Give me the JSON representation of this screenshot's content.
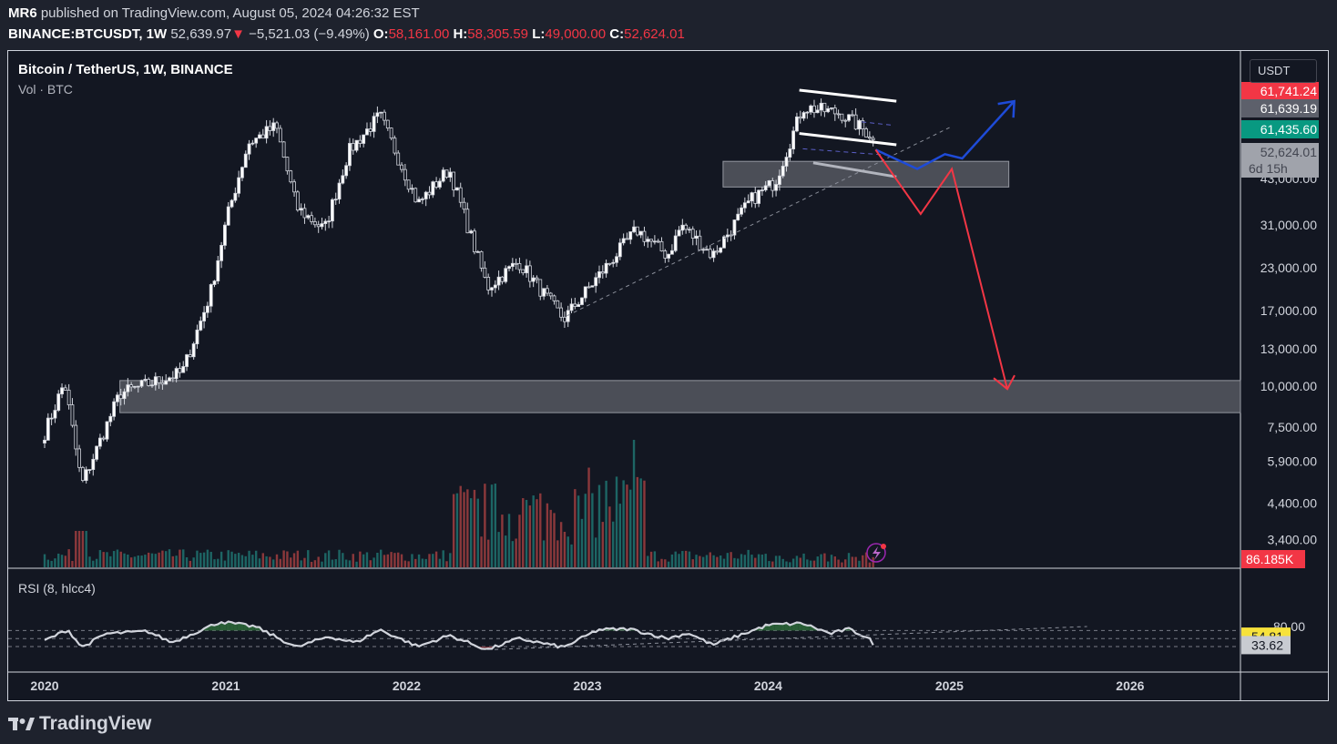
{
  "header": {
    "publisher": "MR6",
    "published_text": "published on TradingView.com, August 05, 2024 04:26:32 EST",
    "ticker": "BINANCE:BTCUSDT, 1W",
    "last": "52,639.97",
    "change_arrow": "▼",
    "change": "−5,521.03 (−9.49%)",
    "open_label": "O:",
    "open": "58,161.00",
    "high_label": "H:",
    "high": "58,305.59",
    "low_label": "L:",
    "low": "49,000.00",
    "close_label": "C:",
    "close": "52,624.01"
  },
  "legend": {
    "symbol": "Bitcoin / TetherUS, 1W, BINANCE",
    "volume": "Vol · BTC",
    "rsi": "RSI (8, hlcc4)"
  },
  "currency_button": "USDT",
  "footer_logo": "TradingView",
  "colors": {
    "up": "#26a69a",
    "down": "#ef5350",
    "background": "#131722",
    "zone": "#50545c",
    "bull_path": "#1e4bd8",
    "bear_path": "#f23645",
    "channel": "#ffffff",
    "trendline": "#8a8e99",
    "rsi_line": "#d1d4dc",
    "rsi_fill": "#2e6b3a"
  },
  "chart_data": [
    {
      "type": "candlestick",
      "title": "Bitcoin / TetherUS, 1W, BINANCE",
      "scale": "log",
      "x_axis_labels": [
        "2020",
        "2021",
        "2022",
        "2023",
        "2024",
        "2025",
        "2026"
      ],
      "y_axis_labels": [
        "43,000.00",
        "31,000.00",
        "23,000.00",
        "17,000.00",
        "13,000.00",
        "10,000.00",
        "7,500.00",
        "5,900.00",
        "4,400.00",
        "3,400.00"
      ],
      "price_tags": [
        {
          "label": "61,741.24",
          "color": "#f23645"
        },
        {
          "label": "61,639.19",
          "color": "#5d606b"
        },
        {
          "label": "61,435.60",
          "color": "#089981"
        },
        {
          "label": "52,624.01",
          "sub": "6d 15h",
          "color": "#a0a3ab"
        }
      ],
      "weekly_close_anchors": [
        [
          "2020-01-01",
          7200
        ],
        [
          "2020-02-10",
          10300
        ],
        [
          "2020-03-16",
          5000
        ],
        [
          "2020-06-01",
          9500
        ],
        [
          "2020-10-05",
          11000
        ],
        [
          "2020-11-30",
          19000
        ],
        [
          "2021-01-04",
          33000
        ],
        [
          "2021-02-15",
          55000
        ],
        [
          "2021-04-12",
          62000
        ],
        [
          "2021-05-24",
          35000
        ],
        [
          "2021-07-19",
          30000
        ],
        [
          "2021-09-06",
          52000
        ],
        [
          "2021-11-08",
          67000
        ],
        [
          "2022-01-24",
          36000
        ],
        [
          "2022-03-28",
          46000
        ],
        [
          "2022-06-13",
          20000
        ],
        [
          "2022-08-15",
          24000
        ],
        [
          "2022-11-14",
          16000
        ],
        [
          "2023-01-16",
          21000
        ],
        [
          "2023-04-10",
          30000
        ],
        [
          "2023-06-12",
          25000
        ],
        [
          "2023-07-10",
          31000
        ],
        [
          "2023-09-11",
          25000
        ],
        [
          "2023-11-27",
          37000
        ],
        [
          "2024-01-15",
          42000
        ],
        [
          "2024-03-11",
          71000
        ],
        [
          "2024-05-27",
          68000
        ],
        [
          "2024-07-29",
          58000
        ],
        [
          "2024-08-05",
          52624
        ]
      ],
      "zones": [
        {
          "name": "upper-support-zone",
          "from_date": "2023-10-02",
          "to_date": "2025-05-01",
          "low": 40500,
          "high": 48500
        },
        {
          "name": "lower-support-zone",
          "from_date": "2020-06-01",
          "to_date": "2026-12-31",
          "low": 8300,
          "high": 10400
        }
      ],
      "projections": {
        "bull": [
          [
            "2024-08-05",
            52624
          ],
          [
            "2024-10-28",
            46000
          ],
          [
            "2024-12-23",
            51000
          ],
          [
            "2025-01-27",
            49500
          ],
          [
            "2025-05-12",
            74000
          ]
        ],
        "bear": [
          [
            "2024-08-05",
            52624
          ],
          [
            "2024-11-04",
            33500
          ],
          [
            "2025-01-06",
            46000
          ],
          [
            "2025-04-28",
            9800
          ]
        ]
      }
    },
    {
      "type": "bar",
      "title": "Vol · BTC",
      "last_value_label": "86.185K",
      "last_value_color": "#f23645"
    },
    {
      "type": "line",
      "title": "RSI (8, hlcc4)",
      "y_axis_labels": [
        "80.00"
      ],
      "levels": [
        70,
        50,
        30
      ],
      "value_tags": [
        {
          "label": "54.81",
          "color": "#f7e23b"
        },
        {
          "label": "33.62",
          "color": "#c8cbd1"
        }
      ],
      "rsi_anchors": [
        [
          "2020-01-01",
          45
        ],
        [
          "2020-02-17",
          72
        ],
        [
          "2020-03-16",
          28
        ],
        [
          "2020-05-04",
          62
        ],
        [
          "2020-07-27",
          68
        ],
        [
          "2020-09-14",
          40
        ],
        [
          "2020-12-21",
          92
        ],
        [
          "2021-03-01",
          80
        ],
        [
          "2021-05-24",
          28
        ],
        [
          "2021-07-26",
          55
        ],
        [
          "2021-09-20",
          40
        ],
        [
          "2021-11-08",
          72
        ],
        [
          "2022-01-24",
          30
        ],
        [
          "2022-03-28",
          58
        ],
        [
          "2022-06-13",
          22
        ],
        [
          "2022-08-15",
          50
        ],
        [
          "2022-11-14",
          28
        ],
        [
          "2023-01-23",
          72
        ],
        [
          "2023-03-27",
          74
        ],
        [
          "2023-06-12",
          50
        ],
        [
          "2023-07-24",
          64
        ],
        [
          "2023-09-11",
          34
        ],
        [
          "2024-01-01",
          84
        ],
        [
          "2024-03-11",
          88
        ],
        [
          "2024-05-06",
          62
        ],
        [
          "2024-06-10",
          74
        ],
        [
          "2024-07-22",
          52
        ],
        [
          "2024-08-05",
          33.62
        ]
      ]
    }
  ]
}
